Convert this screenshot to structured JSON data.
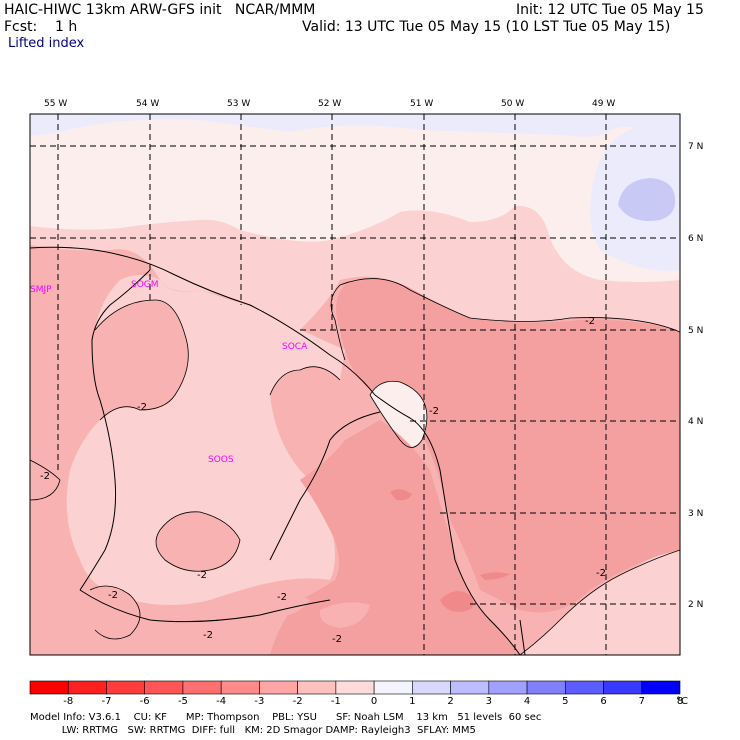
{
  "header": {
    "title": "HAIC-HIWC 13km ARW-GFS init   NCAR/MMM",
    "init": "Init: 12 UTC Tue 05 May 15",
    "fcst": "Fcst:    1 h",
    "valid": "Valid: 13 UTC Tue 05 May 15 (10 LST Tue 05 May 15)",
    "field": "Lifted index"
  },
  "axes": {
    "lon_labels": [
      "55 W",
      "54 W",
      "53 W",
      "52 W",
      "51 W",
      "50 W",
      "49 W"
    ],
    "lat_labels": [
      "7 N",
      "6 N",
      "5 N",
      "4 N",
      "3 N",
      "2 N"
    ]
  },
  "stations": [
    "SMJP",
    "SOGM",
    "SOCA",
    "SOOS"
  ],
  "contour_label": "-2",
  "colorbar": {
    "labels": [
      "-8",
      "-7",
      "-6",
      "-5",
      "-4",
      "-3",
      "-2",
      "-1",
      "0",
      "1",
      "2",
      "3",
      "4",
      "5",
      "6",
      "7",
      "8"
    ],
    "unit": "°C",
    "colors": [
      "#ff0000",
      "#ff2020",
      "#ff3b3b",
      "#ff5555",
      "#ff7070",
      "#ff8a8a",
      "#ffa5a5",
      "#ffc0c0",
      "#ffdbdb",
      "#f4f4ff",
      "#d8d8ff",
      "#bcbcff",
      "#a0a0ff",
      "#8080ff",
      "#5c5cff",
      "#3838ff",
      "#0000ff"
    ]
  },
  "fill_colors": {
    "lightest": "#fdeeee",
    "light": "#fbd1d1",
    "medium": "#f8b2b2",
    "strong": "#f4a0a0",
    "deep": "#f08a8a",
    "blue_light": "#ebebfb",
    "blue_mid": "#c9c9f5"
  },
  "footer": {
    "line1": "Model Info: V3.6.1    CU: KF      MP: Thompson    PBL: YSU      SF: Noah LSM    13 km   51 levels  60 sec",
    "line2": "          LW: RRTMG   SW: RRTMG  DIFF: full   KM: 2D Smagor DAMP: Rayleigh3  SFLAY: MM5"
  }
}
